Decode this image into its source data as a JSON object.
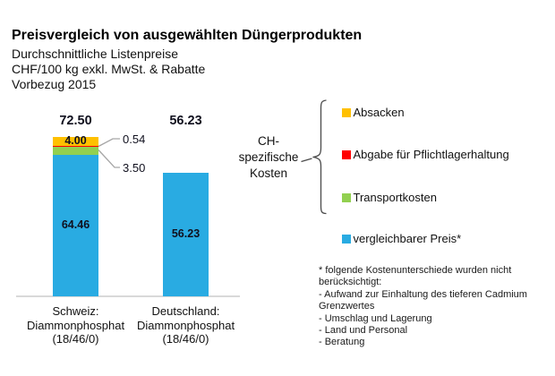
{
  "header": {
    "title": "Preisvergleich von ausgewählten Düngerprodukten",
    "subtitle_lines": "Durchschnittliche Listenpreise\nCHF/100 kg exkl. MwSt. & Rabatte\nVorbezug 2015"
  },
  "chart_data": {
    "type": "bar",
    "stacked": true,
    "title": "Preisvergleich von ausgewählten Düngerprodukten",
    "subtitle": "Durchschnittliche Listenpreise, CHF/100 kg exkl. MwSt. & Rabatte, Vorbezug 2015",
    "unit": "CHF/100 kg",
    "categories": [
      "Schweiz:\nDiammonphosphat\n(18/46/0)",
      "Deutschland:\nDiammonphosphat\n(18/46/0)"
    ],
    "series": [
      {
        "name": "Absacken",
        "color": "#FFC000",
        "values": [
          4.0,
          0
        ]
      },
      {
        "name": "Abgabe für Pflichtlagerhaltung",
        "color": "#FF0000",
        "values": [
          0.54,
          0
        ]
      },
      {
        "name": "Transportkosten",
        "color": "#92D050",
        "values": [
          3.5,
          0
        ]
      },
      {
        "name": "vergleichbarer Preis*",
        "color": "#29ABE2",
        "values": [
          64.46,
          56.23
        ]
      }
    ],
    "totals": [
      72.5,
      56.23
    ],
    "ylim": [
      0,
      75
    ],
    "grid": false,
    "legend_position": "right"
  },
  "annotations": {
    "group_label": "CH-\nspezifische\nKosten",
    "footnote": "* folgende Kostenunterschiede wurden nicht\nberücksichtigt:\n- Aufwand zur Einhaltung des tieferen Cadmium\nGrenzwertes\n- Umschlag und Lagerung\n- Land und Personal\n- Beratung"
  },
  "colors": {
    "axis": "#D9D9D9",
    "callout": "#A6A6A6",
    "brace": "#4a4a4a",
    "absacken": "#FFC000",
    "pflichtlager": "#FF0000",
    "transport": "#92D050",
    "preis": "#29ABE2"
  }
}
